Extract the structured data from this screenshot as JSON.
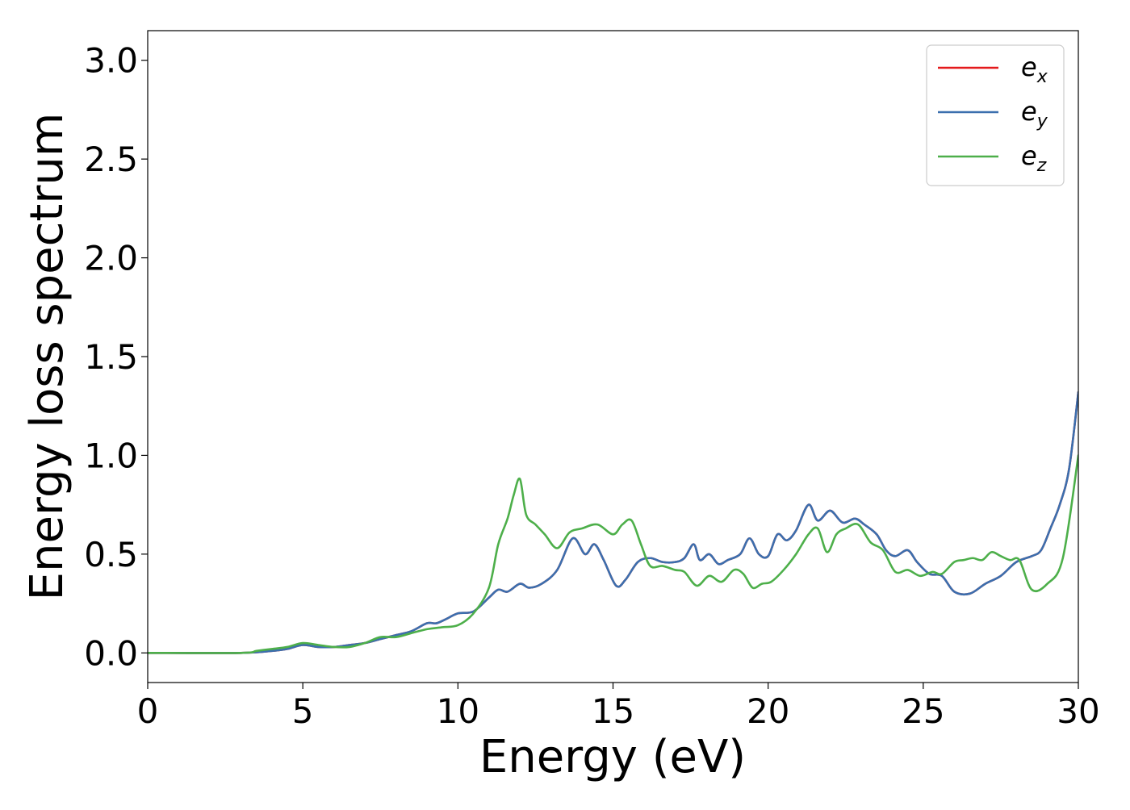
{
  "chart_data": {
    "type": "line",
    "title": "",
    "xlabel": "Energy (eV)",
    "ylabel": "Energy loss spectrum",
    "xlim": [
      0,
      30
    ],
    "ylim": [
      -0.15,
      3.15
    ],
    "xticks": [
      0,
      5,
      10,
      15,
      20,
      25,
      30
    ],
    "xtick_labels": [
      "0",
      "5",
      "10",
      "15",
      "20",
      "25",
      "30"
    ],
    "yticks": [
      0.0,
      0.5,
      1.0,
      1.5,
      2.0,
      2.5,
      3.0
    ],
    "ytick_labels": [
      "0.0",
      "0.5",
      "1.0",
      "1.5",
      "2.0",
      "2.5",
      "3.0"
    ],
    "grid": false,
    "legend_position": "top-right",
    "series": [
      {
        "name": "e_x",
        "label_base": "e",
        "label_sub": "x",
        "color": "#e41a1c",
        "x": [
          0,
          3,
          4,
          4.5,
          5,
          5.5,
          6,
          6.5,
          7,
          7.5,
          8,
          8.5,
          9,
          9.3,
          9.6,
          10,
          10.5,
          11,
          11.3,
          11.6,
          12,
          12.3,
          12.7,
          13.2,
          13.7,
          14.1,
          14.4,
          14.7,
          15.1,
          15.4,
          15.8,
          16.2,
          16.6,
          17,
          17.3,
          17.6,
          17.8,
          18.1,
          18.4,
          18.7,
          19.1,
          19.4,
          19.7,
          20,
          20.3,
          20.6,
          20.9,
          21.3,
          21.6,
          22,
          22.4,
          22.8,
          23.1,
          23.5,
          23.8,
          24.1,
          24.5,
          24.8,
          25.2,
          25.6,
          26,
          26.5,
          27,
          27.5,
          28,
          28.5,
          28.8,
          29.1,
          29.4,
          29.7,
          30
        ],
        "values": [
          0,
          0,
          0.01,
          0.02,
          0.04,
          0.03,
          0.03,
          0.04,
          0.05,
          0.07,
          0.09,
          0.11,
          0.15,
          0.15,
          0.17,
          0.2,
          0.21,
          0.28,
          0.32,
          0.31,
          0.35,
          0.33,
          0.35,
          0.42,
          0.58,
          0.5,
          0.55,
          0.47,
          0.34,
          0.37,
          0.46,
          0.48,
          0.46,
          0.46,
          0.48,
          0.55,
          0.47,
          0.5,
          0.45,
          0.47,
          0.5,
          0.58,
          0.5,
          0.49,
          0.6,
          0.57,
          0.62,
          0.75,
          0.67,
          0.72,
          0.66,
          0.68,
          0.65,
          0.6,
          0.52,
          0.49,
          0.52,
          0.46,
          0.4,
          0.39,
          0.31,
          0.3,
          0.35,
          0.39,
          0.46,
          0.49,
          0.52,
          0.63,
          0.75,
          0.93,
          1.32
        ]
      },
      {
        "name": "e_y",
        "label_base": "e",
        "label_sub": "y",
        "color": "#3b6fae",
        "x": [
          0,
          3,
          4,
          4.5,
          5,
          5.5,
          6,
          6.5,
          7,
          7.5,
          8,
          8.5,
          9,
          9.3,
          9.6,
          10,
          10.5,
          11,
          11.3,
          11.6,
          12,
          12.3,
          12.7,
          13.2,
          13.7,
          14.1,
          14.4,
          14.7,
          15.1,
          15.4,
          15.8,
          16.2,
          16.6,
          17,
          17.3,
          17.6,
          17.8,
          18.1,
          18.4,
          18.7,
          19.1,
          19.4,
          19.7,
          20,
          20.3,
          20.6,
          20.9,
          21.3,
          21.6,
          22,
          22.4,
          22.8,
          23.1,
          23.5,
          23.8,
          24.1,
          24.5,
          24.8,
          25.2,
          25.6,
          26,
          26.5,
          27,
          27.5,
          28,
          28.5,
          28.8,
          29.1,
          29.4,
          29.7,
          30
        ],
        "values": [
          0,
          0,
          0.01,
          0.02,
          0.04,
          0.03,
          0.03,
          0.04,
          0.05,
          0.07,
          0.09,
          0.11,
          0.15,
          0.15,
          0.17,
          0.2,
          0.21,
          0.28,
          0.32,
          0.31,
          0.35,
          0.33,
          0.35,
          0.42,
          0.58,
          0.5,
          0.55,
          0.47,
          0.34,
          0.37,
          0.46,
          0.48,
          0.46,
          0.46,
          0.48,
          0.55,
          0.47,
          0.5,
          0.45,
          0.47,
          0.5,
          0.58,
          0.5,
          0.49,
          0.6,
          0.57,
          0.62,
          0.75,
          0.67,
          0.72,
          0.66,
          0.68,
          0.65,
          0.6,
          0.52,
          0.49,
          0.52,
          0.46,
          0.4,
          0.39,
          0.31,
          0.3,
          0.35,
          0.39,
          0.46,
          0.49,
          0.52,
          0.63,
          0.75,
          0.93,
          1.32
        ]
      },
      {
        "name": "e_z",
        "label_base": "e",
        "label_sub": "z",
        "color": "#4daf4a",
        "x": [
          0,
          3,
          3.5,
          4,
          4.5,
          5,
          5.5,
          6,
          6.5,
          7,
          7.5,
          8,
          8.5,
          9,
          9.5,
          10,
          10.5,
          11,
          11.3,
          11.6,
          11.8,
          12,
          12.2,
          12.5,
          12.8,
          13.2,
          13.6,
          14,
          14.5,
          15,
          15.3,
          15.6,
          15.9,
          16.2,
          16.6,
          17,
          17.3,
          17.7,
          18.1,
          18.5,
          18.9,
          19.2,
          19.5,
          19.8,
          20.1,
          20.5,
          20.9,
          21.3,
          21.6,
          21.9,
          22.2,
          22.5,
          22.9,
          23.3,
          23.7,
          24.1,
          24.5,
          24.9,
          25.3,
          25.6,
          26,
          26.3,
          26.6,
          26.9,
          27.2,
          27.5,
          27.8,
          28.1,
          28.5,
          29,
          29.5,
          30
        ],
        "values": [
          0,
          0,
          0.01,
          0.02,
          0.03,
          0.05,
          0.04,
          0.03,
          0.03,
          0.05,
          0.08,
          0.08,
          0.1,
          0.12,
          0.13,
          0.14,
          0.2,
          0.33,
          0.55,
          0.68,
          0.8,
          0.88,
          0.7,
          0.65,
          0.6,
          0.53,
          0.61,
          0.63,
          0.65,
          0.6,
          0.65,
          0.67,
          0.55,
          0.44,
          0.44,
          0.42,
          0.41,
          0.34,
          0.39,
          0.36,
          0.42,
          0.4,
          0.33,
          0.35,
          0.36,
          0.42,
          0.5,
          0.6,
          0.63,
          0.51,
          0.6,
          0.63,
          0.65,
          0.56,
          0.52,
          0.41,
          0.42,
          0.39,
          0.41,
          0.4,
          0.46,
          0.47,
          0.48,
          0.47,
          0.51,
          0.49,
          0.47,
          0.47,
          0.32,
          0.35,
          0.48,
          1.0
        ]
      }
    ]
  }
}
